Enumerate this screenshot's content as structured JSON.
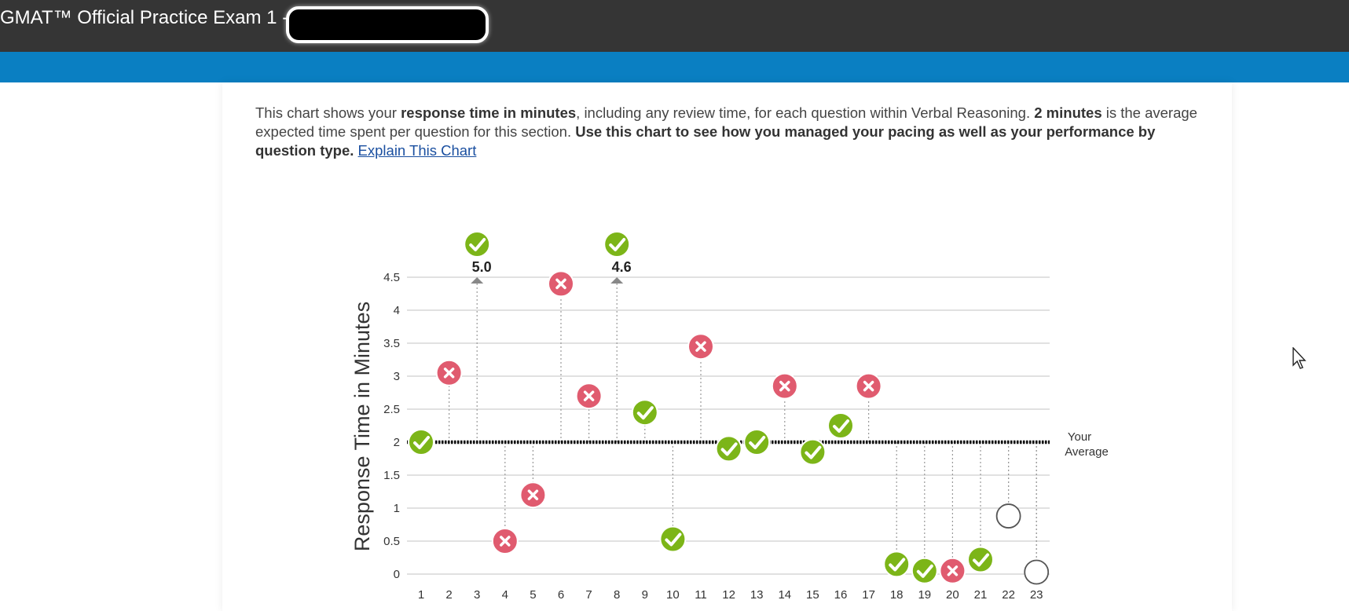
{
  "window": {
    "title": "GMAT™ Official Practice Exam 1 -"
  },
  "description": {
    "p1": "This chart shows your ",
    "b1": "response time in minutes",
    "p2": ", including any review time, for each question within Verbal Reasoning. ",
    "b2": "2 minutes",
    "p3": " is the average expected time spent per question for this section. ",
    "b3": "Use this chart to see how you managed your pacing as well as your performance by question type.",
    "link": "Explain This Chart"
  },
  "colors": {
    "correct": "#7cb518",
    "incorrect": "#e05b6f",
    "unanswered": "#ffffff",
    "header": "#353535",
    "bluebar": "#0a7fc2"
  },
  "chart_data": {
    "type": "scatter",
    "ylabel": "Response Time in Minutes",
    "ylim": [
      0,
      4.5
    ],
    "yticks": [
      "0",
      "0.5",
      "1",
      "1.5",
      "2",
      "2.5",
      "3",
      "3.5",
      "4",
      "4.5"
    ],
    "average": {
      "value": 2,
      "label_line1": "Your",
      "label_line2": "Average"
    },
    "points": [
      {
        "q": "1",
        "time": 2.0,
        "status": "correct"
      },
      {
        "q": "2",
        "time": 3.05,
        "status": "incorrect"
      },
      {
        "q": "3",
        "time": 5.0,
        "status": "correct",
        "offscale_label": "5.0"
      },
      {
        "q": "4",
        "time": 0.5,
        "status": "incorrect"
      },
      {
        "q": "5",
        "time": 1.2,
        "status": "incorrect"
      },
      {
        "q": "6",
        "time": 4.4,
        "status": "incorrect"
      },
      {
        "q": "7",
        "time": 2.7,
        "status": "incorrect"
      },
      {
        "q": "8",
        "time": 4.6,
        "status": "correct",
        "offscale_label": "4.6"
      },
      {
        "q": "9",
        "time": 2.45,
        "status": "correct"
      },
      {
        "q": "10",
        "time": 0.53,
        "status": "correct"
      },
      {
        "q": "11",
        "time": 3.45,
        "status": "incorrect"
      },
      {
        "q": "12",
        "time": 1.9,
        "status": "correct"
      },
      {
        "q": "13",
        "time": 2.0,
        "status": "correct"
      },
      {
        "q": "14",
        "time": 2.85,
        "status": "incorrect"
      },
      {
        "q": "15",
        "time": 1.85,
        "status": "correct"
      },
      {
        "q": "16",
        "time": 2.25,
        "status": "correct"
      },
      {
        "q": "17",
        "time": 2.85,
        "status": "incorrect"
      },
      {
        "q": "18",
        "time": 0.15,
        "status": "correct"
      },
      {
        "q": "19",
        "time": 0.05,
        "status": "correct"
      },
      {
        "q": "20",
        "time": 0.05,
        "status": "incorrect"
      },
      {
        "q": "21",
        "time": 0.22,
        "status": "correct"
      },
      {
        "q": "22",
        "time": 0.88,
        "status": "unanswered"
      },
      {
        "q": "23",
        "time": 0.03,
        "status": "unanswered"
      }
    ]
  }
}
